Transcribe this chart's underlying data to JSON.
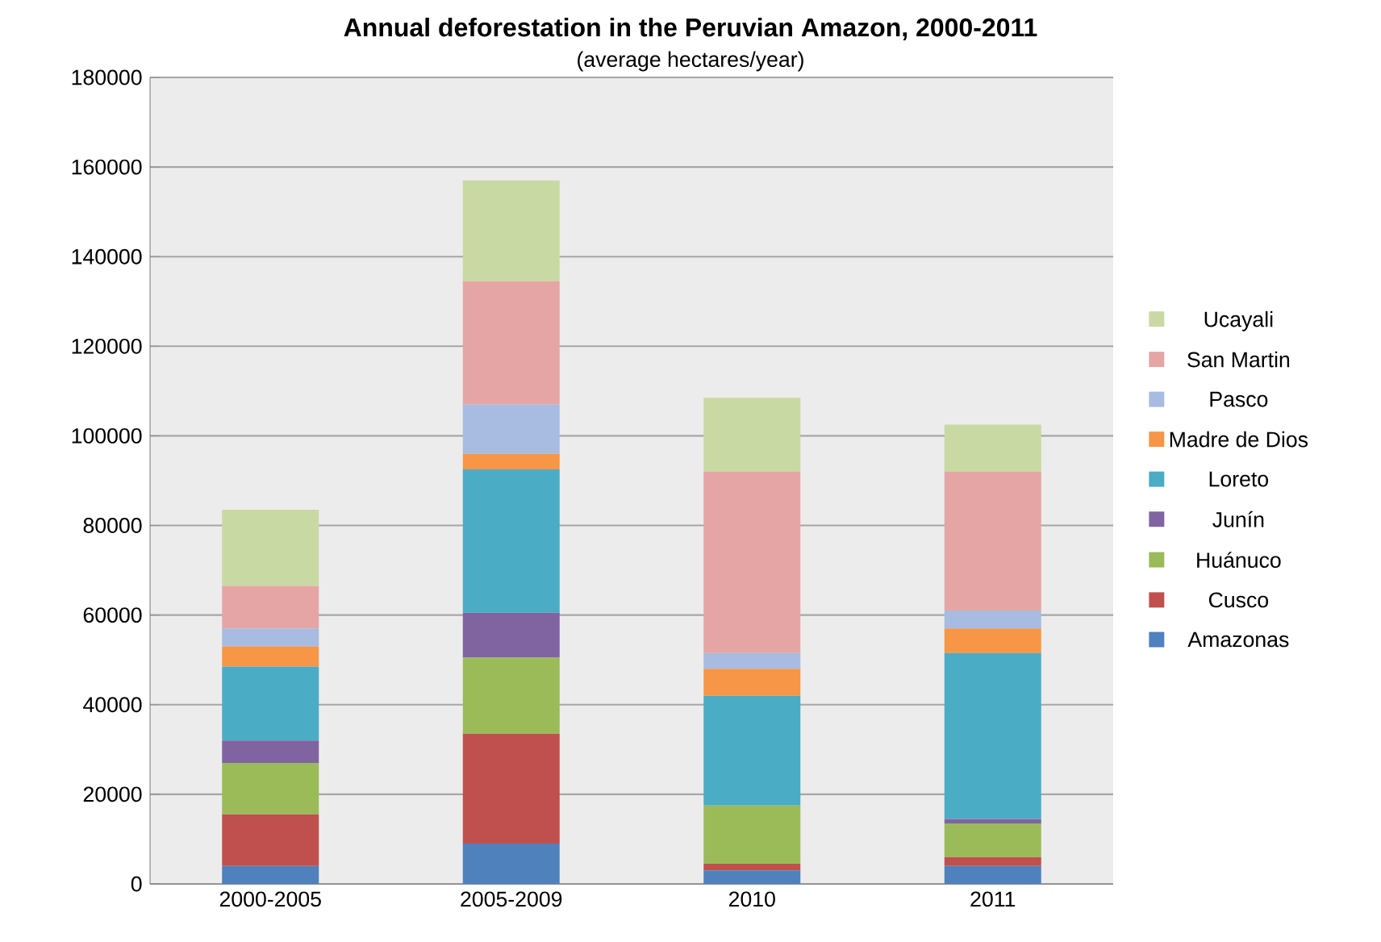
{
  "chart_data": {
    "type": "bar",
    "stacked": true,
    "title": "Annual deforestation in the Peruvian Amazon, 2000-2011",
    "subtitle": "(average hectares/year)",
    "categories": [
      "2000-2005",
      "2005-2009",
      "2010",
      "2011"
    ],
    "series": [
      {
        "name": "Amazonas",
        "color": "#4f81bd",
        "values": [
          4000,
          9000,
          3000,
          4000
        ]
      },
      {
        "name": "Cusco",
        "color": "#c0504d",
        "values": [
          11500,
          24500,
          1500,
          2000
        ]
      },
      {
        "name": "Huánuco",
        "color": "#9bbb59",
        "values": [
          11500,
          17000,
          13000,
          7500
        ]
      },
      {
        "name": "Junín",
        "color": "#8064a2",
        "values": [
          5000,
          10000,
          0,
          1000
        ]
      },
      {
        "name": "Loreto",
        "color": "#4bacc6",
        "values": [
          16500,
          32000,
          24500,
          37000
        ]
      },
      {
        "name": "Madre de Dios",
        "color": "#f79646",
        "values": [
          4500,
          3500,
          6000,
          5500
        ]
      },
      {
        "name": "Pasco",
        "color": "#a7bce0",
        "values": [
          4000,
          11000,
          3500,
          4000
        ]
      },
      {
        "name": "San Martin",
        "color": "#e6a5a5",
        "values": [
          9500,
          27500,
          40500,
          31000
        ]
      },
      {
        "name": "Ucayali",
        "color": "#c9d9a3",
        "values": [
          17000,
          22500,
          16500,
          10500
        ]
      }
    ],
    "ylim": [
      0,
      180000
    ],
    "yticks": [
      0,
      20000,
      40000,
      60000,
      80000,
      100000,
      120000,
      140000,
      160000,
      180000
    ],
    "grid": "y",
    "legend": "right"
  }
}
